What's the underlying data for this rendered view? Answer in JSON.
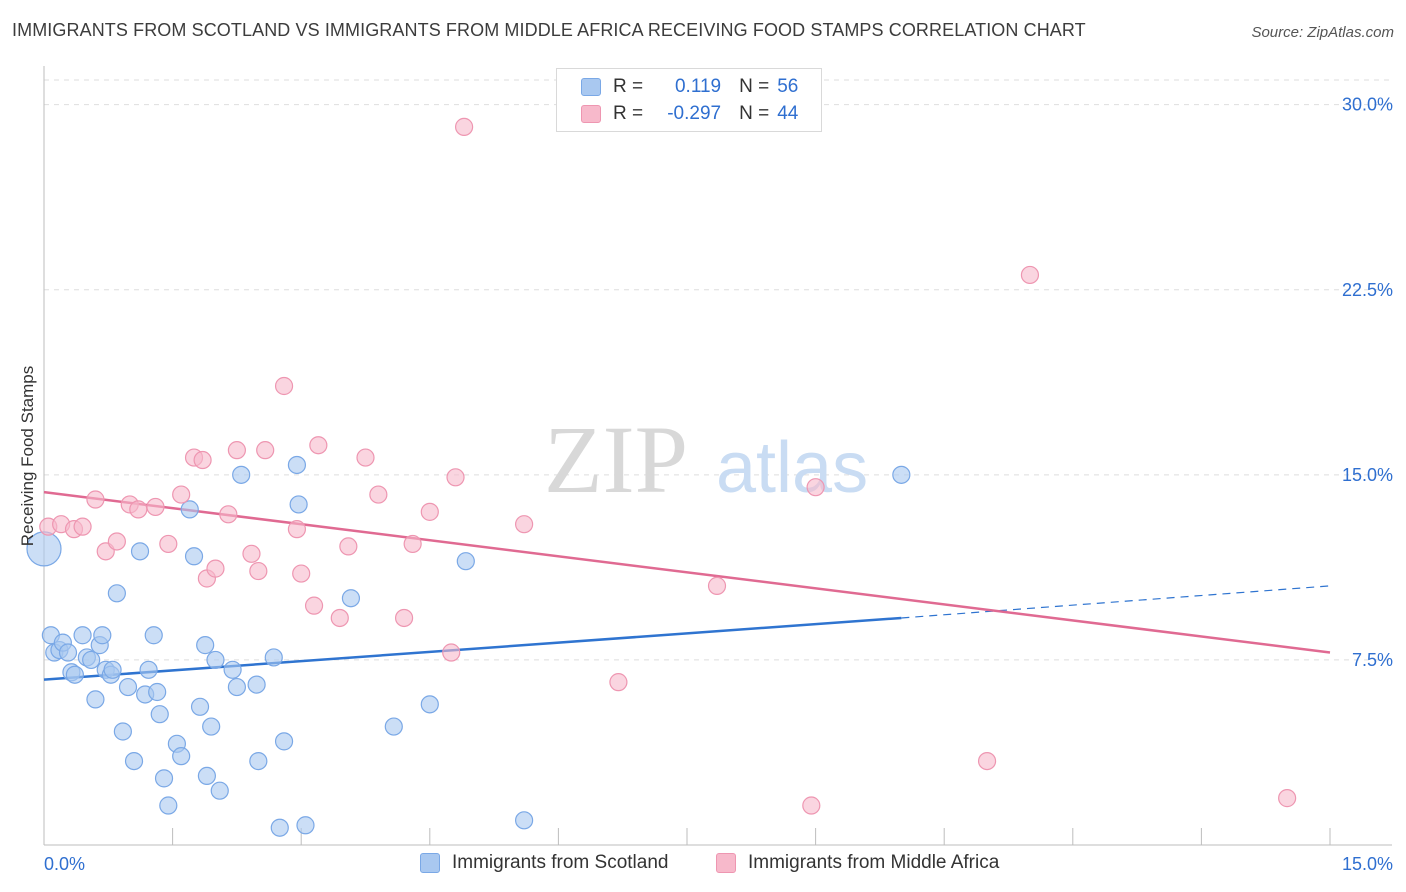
{
  "header": {
    "title": "IMMIGRANTS FROM SCOTLAND VS IMMIGRANTS FROM MIDDLE AFRICA RECEIVING FOOD STAMPS CORRELATION CHART",
    "source": "Source: ZipAtlas.com"
  },
  "watermark": {
    "zip": "ZIP",
    "atlas": "atlas"
  },
  "legend": {
    "rows": [
      {
        "r_label": "R =",
        "r_value": "0.119",
        "n_label": "N =",
        "n_value": "56"
      },
      {
        "r_label": "R =",
        "r_value": "-0.297",
        "n_label": "N =",
        "n_value": "44"
      }
    ]
  },
  "bottom_legend": {
    "scotland": "Immigrants from Scotland",
    "middle_africa": "Immigrants from Middle Africa"
  },
  "colors": {
    "scotland_fill": "#a9c8f0",
    "scotland_stroke": "#7aa8e6",
    "scotland_line": "#2f74d0",
    "africa_fill": "#f7b9cb",
    "africa_stroke": "#ee96b1",
    "africa_line": "#e06a92",
    "tick_label": "#2f6fd0",
    "grid": "#dedede"
  },
  "chart_data": {
    "type": "scatter",
    "title": "IMMIGRANTS FROM SCOTLAND VS IMMIGRANTS FROM MIDDLE AFRICA RECEIVING FOOD STAMPS CORRELATION CHART",
    "xlabel": "",
    "ylabel": "Receiving Food Stamps",
    "xlim": [
      0,
      15
    ],
    "ylim": [
      0,
      31
    ],
    "x_tick_labels": [
      "0.0%",
      "15.0%"
    ],
    "y_ticks": [
      7.5,
      15.0,
      22.5,
      30.0
    ],
    "y_tick_labels": [
      "7.5%",
      "15.0%",
      "22.5%",
      "30.0%"
    ],
    "grid": true,
    "legend_placement": "top-center",
    "series": [
      {
        "name": "Immigrants from Scotland",
        "r": 0.119,
        "n": 56,
        "points": [
          [
            0.0,
            12.0
          ],
          [
            0.08,
            8.5
          ],
          [
            0.12,
            7.8
          ],
          [
            0.18,
            7.9
          ],
          [
            0.22,
            8.2
          ],
          [
            0.28,
            7.8
          ],
          [
            0.32,
            7.0
          ],
          [
            0.36,
            6.9
          ],
          [
            0.45,
            8.5
          ],
          [
            0.5,
            7.6
          ],
          [
            0.55,
            7.5
          ],
          [
            0.6,
            5.9
          ],
          [
            0.65,
            8.1
          ],
          [
            0.68,
            8.5
          ],
          [
            0.72,
            7.1
          ],
          [
            0.78,
            6.9
          ],
          [
            0.8,
            7.1
          ],
          [
            0.85,
            10.2
          ],
          [
            0.92,
            4.6
          ],
          [
            0.98,
            6.4
          ],
          [
            1.05,
            3.4
          ],
          [
            1.12,
            11.9
          ],
          [
            1.18,
            6.1
          ],
          [
            1.22,
            7.1
          ],
          [
            1.28,
            8.5
          ],
          [
            1.32,
            6.2
          ],
          [
            1.35,
            5.3
          ],
          [
            1.4,
            2.7
          ],
          [
            1.45,
            1.6
          ],
          [
            1.55,
            4.1
          ],
          [
            1.6,
            3.6
          ],
          [
            1.7,
            13.6
          ],
          [
            1.75,
            11.7
          ],
          [
            1.82,
            5.6
          ],
          [
            1.88,
            8.1
          ],
          [
            1.9,
            2.8
          ],
          [
            1.95,
            4.8
          ],
          [
            2.0,
            7.5
          ],
          [
            2.05,
            2.2
          ],
          [
            2.2,
            7.1
          ],
          [
            2.25,
            6.4
          ],
          [
            2.3,
            15.0
          ],
          [
            2.48,
            6.5
          ],
          [
            2.5,
            3.4
          ],
          [
            2.68,
            7.6
          ],
          [
            2.75,
            0.7
          ],
          [
            2.8,
            4.2
          ],
          [
            2.95,
            15.4
          ],
          [
            2.97,
            13.8
          ],
          [
            3.05,
            0.8
          ],
          [
            3.58,
            10.0
          ],
          [
            4.08,
            4.8
          ],
          [
            4.5,
            5.7
          ],
          [
            4.92,
            11.5
          ],
          [
            5.6,
            1.0
          ],
          [
            10.0,
            15.0
          ]
        ],
        "trend": {
          "x0": 0.0,
          "y0": 6.7,
          "x_solid_end": 10.0,
          "y_solid_end": 9.2,
          "x1": 15.0,
          "y1": 10.5
        }
      },
      {
        "name": "Immigrants from Middle Africa",
        "r": -0.297,
        "n": 44,
        "points": [
          [
            0.05,
            12.9
          ],
          [
            0.2,
            13.0
          ],
          [
            0.35,
            12.8
          ],
          [
            0.45,
            12.9
          ],
          [
            0.6,
            14.0
          ],
          [
            0.72,
            11.9
          ],
          [
            0.85,
            12.3
          ],
          [
            1.0,
            13.8
          ],
          [
            1.1,
            13.6
          ],
          [
            1.3,
            13.7
          ],
          [
            1.45,
            12.2
          ],
          [
            1.6,
            14.2
          ],
          [
            1.75,
            15.7
          ],
          [
            1.85,
            15.6
          ],
          [
            1.9,
            10.8
          ],
          [
            2.0,
            11.2
          ],
          [
            2.15,
            13.4
          ],
          [
            2.25,
            16.0
          ],
          [
            2.42,
            11.8
          ],
          [
            2.5,
            11.1
          ],
          [
            2.58,
            16.0
          ],
          [
            2.8,
            18.6
          ],
          [
            2.95,
            12.8
          ],
          [
            3.0,
            11.0
          ],
          [
            3.15,
            9.7
          ],
          [
            3.2,
            16.2
          ],
          [
            3.45,
            9.2
          ],
          [
            3.55,
            12.1
          ],
          [
            3.75,
            15.7
          ],
          [
            3.9,
            14.2
          ],
          [
            4.2,
            9.2
          ],
          [
            4.3,
            12.2
          ],
          [
            4.5,
            13.5
          ],
          [
            4.75,
            7.8
          ],
          [
            4.8,
            14.9
          ],
          [
            4.9,
            29.1
          ],
          [
            5.6,
            13.0
          ],
          [
            6.7,
            6.6
          ],
          [
            7.85,
            10.5
          ],
          [
            8.95,
            1.6
          ],
          [
            9.0,
            14.5
          ],
          [
            11.0,
            3.4
          ],
          [
            11.5,
            23.1
          ],
          [
            14.5,
            1.9
          ]
        ],
        "trend": {
          "x0": 0.0,
          "y0": 14.3,
          "x1": 15.0,
          "y1": 7.8
        }
      }
    ]
  }
}
